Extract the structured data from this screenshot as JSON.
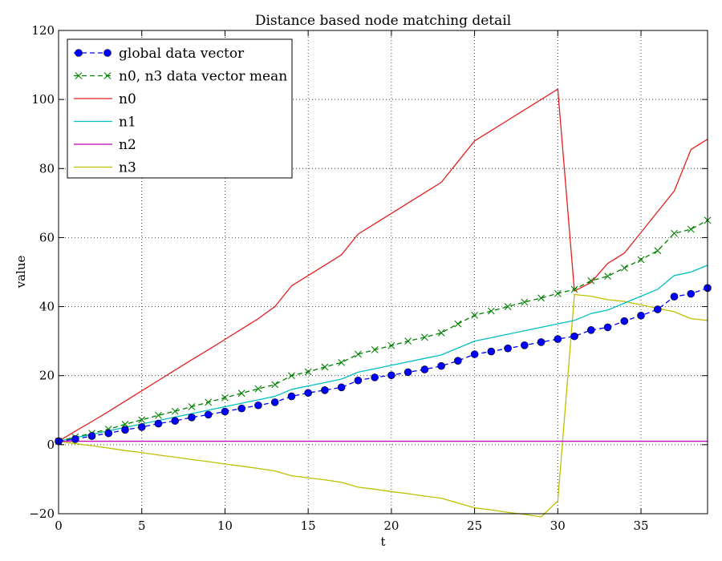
{
  "chart_data": {
    "type": "line",
    "title": "Distance based node matching detail",
    "xlabel": "t",
    "ylabel": "value",
    "xlim": [
      0,
      39
    ],
    "ylim": [
      -20,
      120
    ],
    "xticks": [
      0,
      5,
      10,
      15,
      20,
      25,
      30,
      35
    ],
    "xtick_labels": [
      "0",
      "5",
      "10",
      "15",
      "20",
      "25",
      "30",
      "35"
    ],
    "yticks": [
      -20,
      0,
      20,
      40,
      60,
      80,
      100,
      120
    ],
    "ytick_labels": [
      "−20",
      "0",
      "20",
      "40",
      "60",
      "80",
      "100",
      "120"
    ],
    "grid": true,
    "legend_position": "upper-left",
    "x": [
      0,
      1,
      2,
      3,
      4,
      5,
      6,
      7,
      8,
      9,
      10,
      11,
      12,
      13,
      14,
      15,
      16,
      17,
      18,
      19,
      20,
      21,
      22,
      23,
      24,
      25,
      26,
      27,
      28,
      29,
      30,
      31,
      32,
      33,
      34,
      35,
      36,
      37,
      38,
      39
    ],
    "series": [
      {
        "name": "global data vector",
        "color": "#0000ff",
        "style": "dashed-circle-markers",
        "values": [
          1,
          1.6,
          2.5,
          3.3,
          4.3,
          5.1,
          6.1,
          6.9,
          7.9,
          8.7,
          9.6,
          10.5,
          11.4,
          12.3,
          14,
          15,
          15.8,
          16.6,
          18.6,
          19.5,
          20.1,
          21,
          21.8,
          22.8,
          24.3,
          26.2,
          27,
          27.9,
          28.8,
          29.7,
          30.6,
          31.4,
          33.2,
          34,
          35.8,
          37.4,
          39.2,
          42.9,
          43.7,
          45.4
        ]
      },
      {
        "name": "n0, n3 data vector mean",
        "color": "#008000",
        "style": "dashed-x-markers",
        "values": [
          1,
          2.2,
          3.3,
          4.5,
          5.9,
          7.2,
          8.5,
          9.7,
          11,
          12.3,
          13.6,
          14.9,
          16.2,
          17.4,
          20,
          21.1,
          22.5,
          23.8,
          26.2,
          27.5,
          28.7,
          30,
          31.1,
          32.4,
          35,
          37.5,
          38.7,
          40,
          41.3,
          42.5,
          43.8,
          45,
          47.5,
          48.8,
          51.2,
          53.6,
          56.2,
          61.2,
          62.4,
          65
        ]
      },
      {
        "name": "n0",
        "color": "#e51f1f",
        "style": "solid",
        "values": [
          1,
          3.9,
          6.7,
          9.6,
          12.6,
          15.6,
          18.6,
          21.6,
          24.6,
          27.5,
          30.5,
          33.5,
          36.5,
          40,
          46,
          49,
          52,
          55,
          61,
          64,
          67,
          70,
          73,
          76,
          82,
          88,
          91,
          94,
          97,
          100,
          103,
          44.5,
          47,
          52.5,
          55.5,
          61.5,
          67.5,
          73.5,
          85.5,
          88.5
        ]
      },
      {
        "name": "n1",
        "color": "#00bfbf",
        "style": "solid",
        "values": [
          1,
          2,
          3,
          4,
          5,
          6,
          7,
          8,
          9,
          10,
          11,
          12,
          13,
          14,
          16,
          17,
          18,
          19,
          21,
          22,
          23,
          24,
          25,
          26,
          28,
          30,
          31,
          32,
          33,
          34,
          35,
          36,
          38,
          39,
          41,
          43,
          45,
          49,
          50,
          52
        ]
      },
      {
        "name": "n2",
        "color": "#bf00bf",
        "style": "solid",
        "values": [
          1,
          1,
          1,
          1,
          1,
          1,
          1,
          1,
          1,
          1,
          1,
          1,
          1,
          1,
          1,
          1,
          1,
          1,
          1,
          1,
          1,
          1,
          1,
          1,
          1,
          1,
          1,
          1,
          1,
          1,
          1,
          1,
          1,
          1,
          1,
          1,
          1,
          1,
          1,
          1
        ]
      },
      {
        "name": "n3",
        "color": "#bfbf00",
        "style": "solid",
        "values": [
          1,
          0.3,
          -0.3,
          -1,
          -1.7,
          -2.3,
          -3,
          -3.6,
          -4.3,
          -4.9,
          -5.6,
          -6.2,
          -6.9,
          -7.6,
          -9,
          -9.6,
          -10.2,
          -10.9,
          -12.3,
          -12.9,
          -13.6,
          -14.2,
          -14.9,
          -15.5,
          -16.9,
          -18.3,
          -18.9,
          -19.6,
          -20.2,
          -20.9,
          -16.3,
          43.5,
          43,
          42,
          41.5,
          40.5,
          39.5,
          38.5,
          36.5,
          36
        ]
      }
    ]
  }
}
